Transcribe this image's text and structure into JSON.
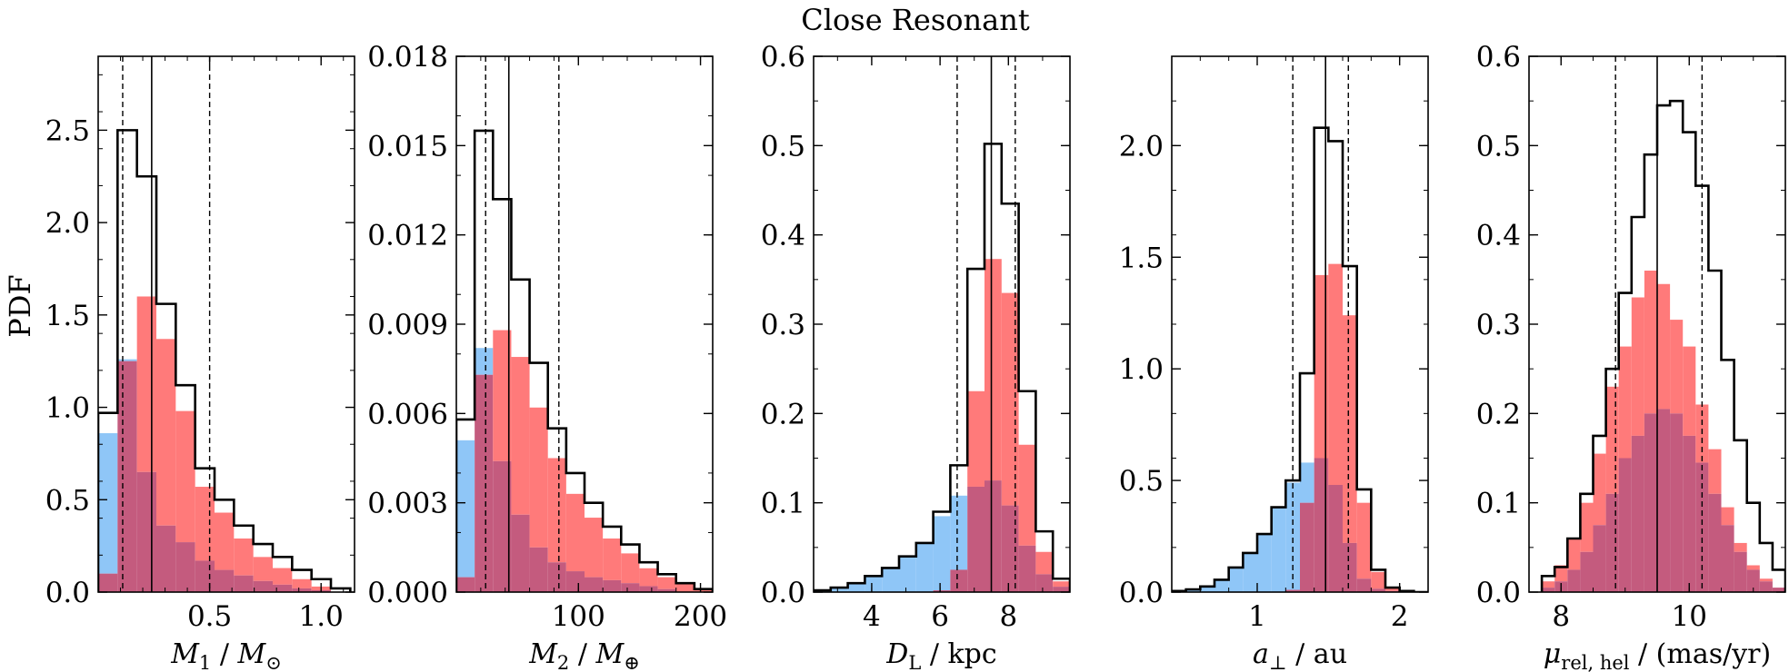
{
  "figure_title": "Close Resonant",
  "colors": {
    "blue": "#8fc6f7",
    "red": "#ff7a7a",
    "overlap": "#c45b7e",
    "line": "#000000"
  },
  "chart_data": [
    {
      "type": "histogram",
      "xlabel": "M1 / M⊙",
      "xlabel_parts": [
        {
          "t": "M",
          "i": true
        },
        {
          "t": "1",
          "sub": true
        },
        {
          "t": " / "
        },
        {
          "t": "M",
          "i": true
        },
        {
          "t": "⊙",
          "sub": true
        }
      ],
      "ylabel": "PDF",
      "xlim": [
        0,
        1.15
      ],
      "ylim": [
        0,
        2.9
      ],
      "xticks": [
        0.5,
        1.0
      ],
      "xtick_labels": [
        "0.5",
        "1.0"
      ],
      "yticks": [
        0,
        0.5,
        1.0,
        1.5,
        2.0,
        2.5
      ],
      "ytick_labels": [
        "0.0",
        "0.5",
        "1.0",
        "1.5",
        "2.0",
        "2.5"
      ],
      "bin_edges": [
        0,
        0.087,
        0.174,
        0.261,
        0.348,
        0.435,
        0.522,
        0.609,
        0.696,
        0.783,
        0.87,
        0.957,
        1.044,
        1.131
      ],
      "series": [
        {
          "name": "blue",
          "values": [
            0.86,
            1.26,
            0.65,
            0.36,
            0.27,
            0.17,
            0.12,
            0.09,
            0.06,
            0.04,
            0.02,
            0.01,
            0.0
          ]
        },
        {
          "name": "red",
          "values": [
            0.1,
            1.25,
            1.6,
            1.37,
            0.98,
            0.57,
            0.43,
            0.29,
            0.19,
            0.13,
            0.07,
            0.03,
            0.0
          ]
        },
        {
          "name": "total",
          "values": [
            0.97,
            2.5,
            2.25,
            1.56,
            1.12,
            0.67,
            0.5,
            0.36,
            0.26,
            0.19,
            0.12,
            0.07,
            0.02
          ]
        }
      ],
      "median": 0.24,
      "interval": [
        0.11,
        0.5
      ]
    },
    {
      "type": "histogram",
      "xlabel": "M2 / M⊕",
      "xlabel_parts": [
        {
          "t": "M",
          "i": true
        },
        {
          "t": "2",
          "sub": true
        },
        {
          "t": " / "
        },
        {
          "t": "M",
          "i": true
        },
        {
          "t": "⊕",
          "sub": true
        }
      ],
      "ylabel": "",
      "xlim": [
        0,
        210
      ],
      "ylim": [
        0,
        0.018
      ],
      "xticks": [
        100,
        200
      ],
      "xtick_labels": [
        "100",
        "200"
      ],
      "yticks": [
        0,
        0.003,
        0.006,
        0.009,
        0.012,
        0.015,
        0.018
      ],
      "ytick_labels": [
        "0.000",
        "0.003",
        "0.006",
        "0.009",
        "0.012",
        "0.015",
        "0.018"
      ],
      "bin_edges": [
        0,
        15,
        30,
        45,
        60,
        75,
        90,
        105,
        120,
        135,
        150,
        165,
        180,
        195,
        210
      ],
      "series": [
        {
          "name": "blue",
          "values": [
            0.0051,
            0.0082,
            0.0044,
            0.0026,
            0.0015,
            0.001,
            0.0007,
            0.0005,
            0.0004,
            0.0003,
            0.0002,
            0.0001,
            0.0,
            0.0
          ]
        },
        {
          "name": "red",
          "values": [
            0.0005,
            0.0073,
            0.0088,
            0.0079,
            0.0062,
            0.0045,
            0.0033,
            0.0025,
            0.0018,
            0.0013,
            0.0008,
            0.0005,
            0.0003,
            0.0001
          ]
        },
        {
          "name": "total",
          "values": [
            0.0058,
            0.0155,
            0.0132,
            0.0105,
            0.0077,
            0.0055,
            0.004,
            0.003,
            0.0022,
            0.0016,
            0.001,
            0.0006,
            0.0003,
            0.0001
          ]
        }
      ],
      "median": 43,
      "interval": [
        24,
        84
      ]
    },
    {
      "type": "histogram",
      "xlabel": "DL / kpc",
      "xlabel_parts": [
        {
          "t": "D",
          "i": true
        },
        {
          "t": "L",
          "sub": true
        },
        {
          "t": " / kpc"
        }
      ],
      "ylabel": "",
      "xlim": [
        2.3,
        9.8
      ],
      "ylim": [
        0,
        0.6
      ],
      "xticks": [
        4,
        6,
        8
      ],
      "xtick_labels": [
        "4",
        "6",
        "8"
      ],
      "yticks": [
        0,
        0.1,
        0.2,
        0.3,
        0.4,
        0.5,
        0.6
      ],
      "ytick_labels": [
        "0.0",
        "0.1",
        "0.2",
        "0.3",
        "0.4",
        "0.5",
        "0.6"
      ],
      "bin_edges": [
        2.3,
        2.8,
        3.3,
        3.8,
        4.3,
        4.8,
        5.3,
        5.8,
        6.3,
        6.8,
        7.3,
        7.8,
        8.3,
        8.8,
        9.3,
        9.8
      ],
      "series": [
        {
          "name": "blue",
          "values": [
            0.002,
            0.005,
            0.01,
            0.018,
            0.027,
            0.04,
            0.055,
            0.085,
            0.108,
            0.118,
            0.125,
            0.097,
            0.052,
            0.02,
            0.006
          ]
        },
        {
          "name": "red",
          "values": [
            0.0,
            0.0,
            0.0,
            0.0,
            0.0,
            0.0,
            0.0,
            0.002,
            0.025,
            0.225,
            0.373,
            0.335,
            0.165,
            0.045,
            0.012
          ]
        },
        {
          "name": "total",
          "values": [
            0.002,
            0.005,
            0.01,
            0.018,
            0.027,
            0.04,
            0.055,
            0.09,
            0.142,
            0.362,
            0.502,
            0.435,
            0.225,
            0.068,
            0.015
          ]
        }
      ],
      "median": 7.5,
      "interval": [
        6.5,
        8.2
      ]
    },
    {
      "type": "histogram",
      "xlabel": "a⊥ / au",
      "xlabel_parts": [
        {
          "t": "a",
          "i": true
        },
        {
          "t": "⊥",
          "sub": true
        },
        {
          "t": " / au"
        }
      ],
      "ylabel": "",
      "xlim": [
        0.4,
        2.2
      ],
      "ylim": [
        0,
        2.4
      ],
      "xticks": [
        1,
        2
      ],
      "xtick_labels": [
        "1",
        "2"
      ],
      "yticks": [
        0,
        0.5,
        1.0,
        1.5,
        2.0
      ],
      "ytick_labels": [
        "0.0",
        "0.5",
        "1.0",
        "1.5",
        "2.0"
      ],
      "bin_edges": [
        0.4,
        0.5,
        0.6,
        0.7,
        0.8,
        0.9,
        1.0,
        1.1,
        1.2,
        1.3,
        1.4,
        1.5,
        1.6,
        1.7,
        1.8,
        1.9,
        2.0,
        2.1,
        2.2
      ],
      "series": [
        {
          "name": "blue",
          "values": [
            0.005,
            0.012,
            0.025,
            0.055,
            0.11,
            0.175,
            0.26,
            0.38,
            0.49,
            0.58,
            0.6,
            0.48,
            0.22,
            0.06,
            0.015,
            0.005,
            0.0,
            0.0
          ]
        },
        {
          "name": "red",
          "values": [
            0.0,
            0.0,
            0.0,
            0.0,
            0.0,
            0.0,
            0.0,
            0.0,
            0.01,
            0.4,
            1.42,
            1.47,
            1.24,
            0.4,
            0.09,
            0.02,
            0.0,
            0.0
          ]
        },
        {
          "name": "total",
          "values": [
            0.005,
            0.012,
            0.025,
            0.055,
            0.11,
            0.175,
            0.26,
            0.38,
            0.5,
            0.98,
            2.08,
            2.02,
            1.46,
            0.46,
            0.1,
            0.02,
            0.005,
            0.0
          ]
        }
      ],
      "median": 1.48,
      "interval": [
        1.25,
        1.64
      ]
    },
    {
      "type": "histogram",
      "xlabel": "μrel,hel / (mas/yr)",
      "xlabel_parts": [
        {
          "t": "μ",
          "i": true
        },
        {
          "t": "rel, hel",
          "sub": true
        },
        {
          "t": " / (mas/yr)"
        }
      ],
      "ylabel": "",
      "xlim": [
        7.5,
        11.5
      ],
      "ylim": [
        0,
        0.6
      ],
      "xticks": [
        8,
        10
      ],
      "xtick_labels": [
        "8",
        "10"
      ],
      "yticks": [
        0,
        0.1,
        0.2,
        0.3,
        0.4,
        0.5,
        0.6
      ],
      "ytick_labels": [
        "0.0",
        "0.1",
        "0.2",
        "0.3",
        "0.4",
        "0.5",
        "0.6"
      ],
      "bin_edges": [
        7.7,
        7.9,
        8.1,
        8.3,
        8.5,
        8.7,
        8.9,
        9.1,
        9.3,
        9.5,
        9.7,
        9.9,
        10.1,
        10.3,
        10.5,
        10.7,
        10.9,
        11.1,
        11.3,
        11.5
      ],
      "series": [
        {
          "name": "blue",
          "values": [
            0.005,
            0.012,
            0.025,
            0.045,
            0.075,
            0.11,
            0.15,
            0.175,
            0.2,
            0.205,
            0.2,
            0.175,
            0.145,
            0.11,
            0.075,
            0.045,
            0.025,
            0.012,
            0.005
          ]
        },
        {
          "name": "red",
          "values": [
            0.012,
            0.03,
            0.06,
            0.1,
            0.155,
            0.23,
            0.275,
            0.33,
            0.36,
            0.345,
            0.305,
            0.275,
            0.21,
            0.16,
            0.095,
            0.055,
            0.03,
            0.015,
            0.005
          ]
        },
        {
          "name": "total",
          "values": [
            0.018,
            0.028,
            0.06,
            0.11,
            0.175,
            0.25,
            0.335,
            0.42,
            0.49,
            0.545,
            0.55,
            0.515,
            0.455,
            0.36,
            0.26,
            0.17,
            0.1,
            0.055,
            0.025
          ]
        }
      ],
      "median": 9.5,
      "interval": [
        8.85,
        10.2
      ]
    }
  ]
}
